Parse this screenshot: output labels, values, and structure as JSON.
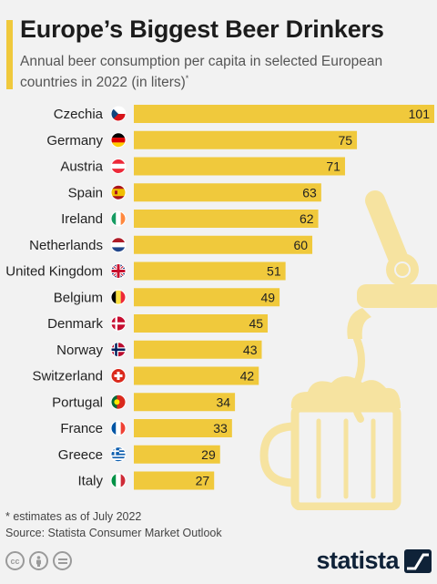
{
  "header": {
    "title": "Europe’s Biggest Beer Drinkers",
    "subtitle": "Annual beer consumption per capita in selected European countries in 2022 (in liters)",
    "subtitle_mark": "*"
  },
  "chart_data": {
    "type": "bar",
    "orientation": "horizontal",
    "categories": [
      "Czechia",
      "Germany",
      "Austria",
      "Spain",
      "Ireland",
      "Netherlands",
      "United Kingdom",
      "Belgium",
      "Denmark",
      "Norway",
      "Switzerland",
      "Portugal",
      "France",
      "Greece",
      "Italy"
    ],
    "values": [
      101,
      75,
      71,
      63,
      62,
      60,
      51,
      49,
      45,
      43,
      42,
      34,
      33,
      29,
      27
    ],
    "flag_icons": [
      "czechia-flag-icon",
      "germany-flag-icon",
      "austria-flag-icon",
      "spain-flag-icon",
      "ireland-flag-icon",
      "netherlands-flag-icon",
      "united-kingdom-flag-icon",
      "belgium-flag-icon",
      "denmark-flag-icon",
      "norway-flag-icon",
      "switzerland-flag-icon",
      "portugal-flag-icon",
      "france-flag-icon",
      "greece-flag-icon",
      "italy-flag-icon"
    ],
    "xlim": [
      0,
      101
    ],
    "grid": false,
    "bar_color": "#f0c93c"
  },
  "footer": {
    "footnote": "* estimates as of July 2022",
    "source": "Source: Statista Consumer Market Outlook",
    "license_icons": [
      "cc-icon",
      "attribution-icon",
      "no-derivatives-icon"
    ],
    "logo_text": "statista"
  },
  "colors": {
    "accent": "#f0c93c",
    "background": "#f2f2f2",
    "illustration": "#f6e3a0",
    "logo": "#0f2238"
  }
}
